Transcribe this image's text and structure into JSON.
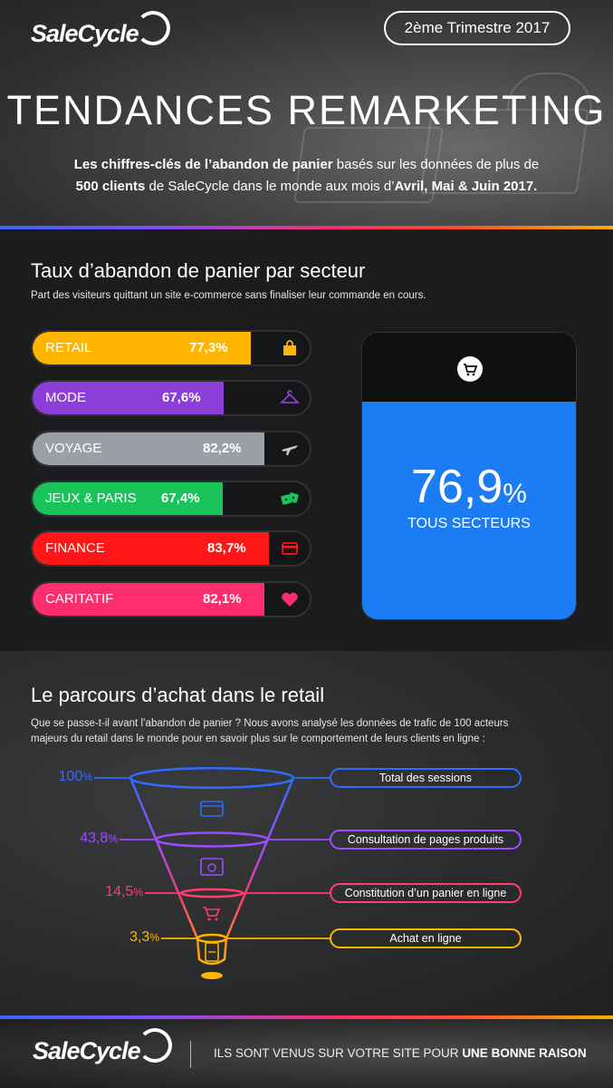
{
  "header": {
    "brand": "SaleCycle",
    "quarter": "2ème Trimestre 2017",
    "title": "TENDANCES REMARKETING",
    "intro": {
      "p1_bold": "Les chiffres-clés de l’abandon de panier",
      "p1_rest": " basés sur les données de plus de",
      "p2_bold": "500 clients",
      "p2_mid": " de SaleCycle dans le monde aux mois d’",
      "p2_bold2": "Avril, Mai & Juin 2017."
    }
  },
  "sector": {
    "title": "Taux d’abandon de panier par secteur",
    "subtitle": "Part des visiteurs quittant un site e-commerce sans finaliser leur commande en cours.",
    "total_value": "76,9",
    "total_unit": "%",
    "total_label": "TOUS SECTEURS"
  },
  "funnel_section": {
    "title": "Le parcours d’achat dans le retail",
    "intro_line1": "Que se passe-t-il avant l’abandon de panier ? Nous avons analysé les données de trafic de 100 acteurs",
    "intro_line2": "majeurs du retail dans le monde pour en savoir plus sur le comportement de leurs clients en ligne :"
  },
  "footer": {
    "brand": "SaleCycle",
    "tagline_prefix": "ILS SONT VENUS SUR VOTRE SITE POUR ",
    "tagline_bold": "UNE BONNE RAISON"
  },
  "chart_data": [
    {
      "type": "bar",
      "title": "Taux d’abandon de panier par secteur",
      "categories": [
        "RETAIL",
        "MODE",
        "VOYAGE",
        "JEUX & PARIS",
        "FINANCE",
        "CARITATIF"
      ],
      "values": [
        77.3,
        67.6,
        82.2,
        67.4,
        83.7,
        82.1
      ],
      "value_labels": [
        "77,3%",
        "67,6%",
        "82,2%",
        "67,4%",
        "83,7%",
        "82,1%"
      ],
      "colors": [
        "#ffb400",
        "#8c3fd8",
        "#9aa0a6",
        "#18c35a",
        "#ff1616",
        "#ff2d6e"
      ],
      "icons": [
        "shopping-bag-icon",
        "hanger-icon",
        "airplane-icon",
        "dice-icon",
        "credit-card-icon",
        "heart-icon"
      ]
    },
    {
      "type": "funnel",
      "categories": [
        "Total des sessions",
        "Consultation de pages produits",
        "Constitution d’un panier en ligne",
        "Achat en ligne"
      ],
      "values": [
        100,
        43.8,
        14.5,
        3.3
      ],
      "value_numbers": [
        "100",
        "43,8",
        "14,5",
        "3,3"
      ],
      "unit": "%",
      "colors": [
        "#2f6bff",
        "#9b4dff",
        "#ff3d6e",
        "#ffb400"
      ]
    }
  ]
}
